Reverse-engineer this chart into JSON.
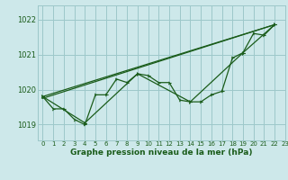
{
  "background_color": "#cde8ea",
  "grid_color": "#9dc8ca",
  "line_color": "#1a5c1a",
  "xlim": [
    -0.5,
    23
  ],
  "ylim": [
    1018.55,
    1022.4
  ],
  "yticks": [
    1019,
    1020,
    1021,
    1022
  ],
  "xticks": [
    0,
    1,
    2,
    3,
    4,
    5,
    6,
    7,
    8,
    9,
    10,
    11,
    12,
    13,
    14,
    15,
    16,
    17,
    18,
    19,
    20,
    21,
    22,
    23
  ],
  "xlabel": "Graphe pression niveau de la mer (hPa)",
  "series_main": [
    [
      0,
      1019.8
    ],
    [
      1,
      1019.45
    ],
    [
      2,
      1019.45
    ],
    [
      3,
      1019.15
    ],
    [
      4,
      1019.0
    ],
    [
      5,
      1019.85
    ],
    [
      6,
      1019.85
    ],
    [
      7,
      1020.3
    ],
    [
      8,
      1020.2
    ],
    [
      9,
      1020.45
    ],
    [
      10,
      1020.4
    ],
    [
      11,
      1020.2
    ],
    [
      12,
      1020.2
    ],
    [
      13,
      1019.7
    ],
    [
      14,
      1019.65
    ],
    [
      15,
      1019.65
    ],
    [
      16,
      1019.85
    ],
    [
      17,
      1019.95
    ],
    [
      18,
      1020.9
    ],
    [
      19,
      1021.05
    ],
    [
      20,
      1021.6
    ],
    [
      21,
      1021.55
    ],
    [
      22,
      1021.85
    ]
  ],
  "series_coarse": [
    [
      0,
      1019.8
    ],
    [
      4,
      1019.05
    ],
    [
      9,
      1020.45
    ],
    [
      14,
      1019.65
    ],
    [
      19,
      1021.05
    ],
    [
      22,
      1021.85
    ]
  ],
  "series_line1": [
    [
      0,
      1019.75
    ],
    [
      22,
      1021.85
    ]
  ],
  "series_line2": [
    [
      0,
      1019.8
    ],
    [
      22,
      1021.85
    ]
  ]
}
